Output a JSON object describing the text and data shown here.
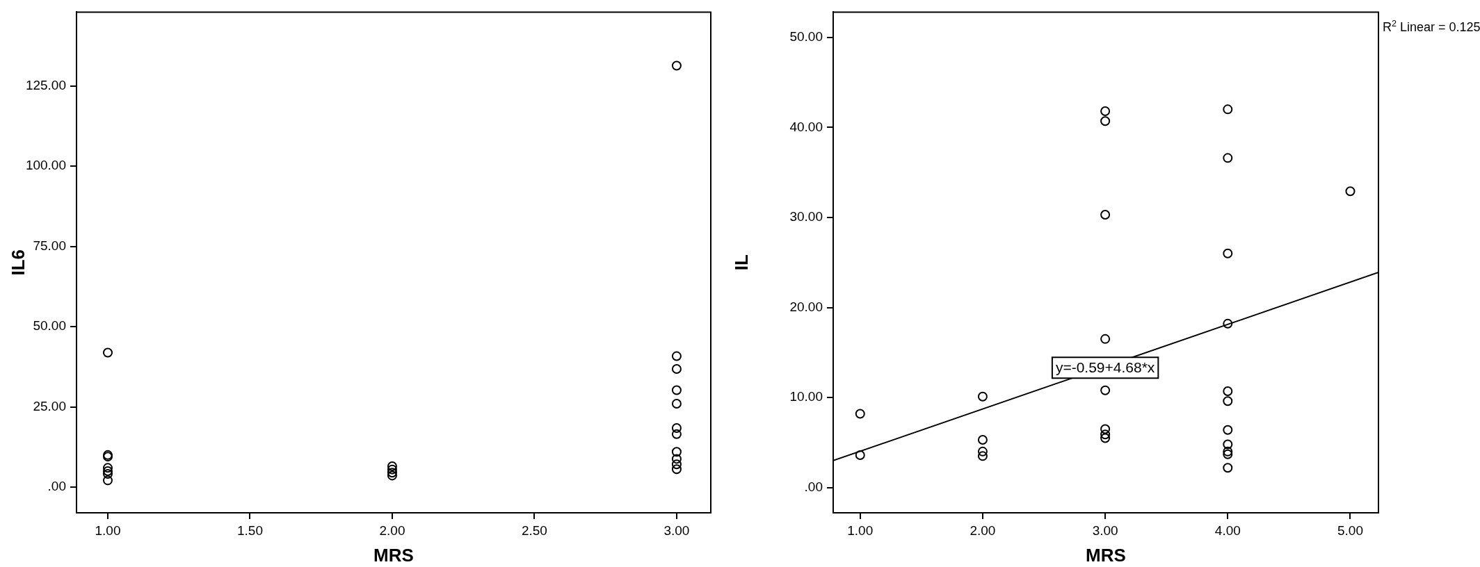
{
  "chart_data": [
    {
      "type": "scatter",
      "xlabel": "MRS",
      "ylabel": "IL6",
      "xlim": [
        0.89,
        3.12
      ],
      "ylim": [
        -8,
        148
      ],
      "xticks": [
        {
          "value": 1,
          "label": "1.00"
        },
        {
          "value": 1.5,
          "label": "1.50"
        },
        {
          "value": 2,
          "label": "2.00"
        },
        {
          "value": 2.5,
          "label": "2.50"
        },
        {
          "value": 3,
          "label": "3.00"
        }
      ],
      "yticks": [
        {
          "value": 0,
          "label": ".00"
        },
        {
          "value": 25,
          "label": "25.00"
        },
        {
          "value": 50,
          "label": "50.00"
        },
        {
          "value": 75,
          "label": "75.00"
        },
        {
          "value": 100,
          "label": "100.00"
        },
        {
          "value": 125,
          "label": "125.00"
        }
      ],
      "marker": "circle",
      "legend": false,
      "series": [
        {
          "color": "#000000",
          "x": [
            1,
            1,
            1,
            1,
            1,
            1,
            1,
            2,
            2,
            2,
            2,
            3,
            3,
            3,
            3,
            3,
            3,
            3,
            3,
            3,
            3,
            3
          ],
          "values": [
            41.9,
            10.0,
            9.5,
            6.0,
            5.0,
            4.1,
            2.1,
            6.5,
            5.5,
            4.5,
            3.6,
            131.3,
            40.8,
            36.8,
            30.2,
            26.0,
            18.4,
            16.5,
            11.0,
            8.8,
            7.1,
            5.6
          ]
        }
      ]
    },
    {
      "type": "scatter",
      "xlabel": "MRS",
      "ylabel": "IL",
      "xlim": [
        0.78,
        5.23
      ],
      "ylim": [
        -2.8,
        52.8
      ],
      "xticks": [
        {
          "value": 1,
          "label": "1.00"
        },
        {
          "value": 2,
          "label": "2.00"
        },
        {
          "value": 3,
          "label": "3.00"
        },
        {
          "value": 4,
          "label": "4.00"
        },
        {
          "value": 5,
          "label": "5.00"
        }
      ],
      "yticks": [
        {
          "value": 0,
          "label": ".00"
        },
        {
          "value": 10,
          "label": "10.00"
        },
        {
          "value": 20,
          "label": "20.00"
        },
        {
          "value": 30,
          "label": "30.00"
        },
        {
          "value": 40,
          "label": "40.00"
        },
        {
          "value": 50,
          "label": "50.00"
        }
      ],
      "marker": "circle",
      "legend": false,
      "annotations": [
        "R$^{2}$ Linear = 0.125",
        {
          "text": "y=-0.59+4.68*x",
          "x": 3.0,
          "y": 13.3
        }
      ],
      "series": [
        {
          "color": "#000000",
          "x": [
            1,
            1,
            2,
            2,
            2,
            2,
            3,
            3,
            3,
            3,
            3,
            3,
            3,
            3,
            4,
            4,
            4,
            4,
            4,
            4,
            4,
            4,
            4,
            4,
            4,
            5
          ],
          "values": [
            8.2,
            3.6,
            10.1,
            5.3,
            4.0,
            3.5,
            41.8,
            40.7,
            30.3,
            16.5,
            10.8,
            6.5,
            5.9,
            5.5,
            42.0,
            36.6,
            26.0,
            18.2,
            10.7,
            9.6,
            6.4,
            4.8,
            4.0,
            3.7,
            2.2,
            32.9
          ]
        },
        {
          "type": "line",
          "marker": "none",
          "color": "#000000",
          "x": [
            0.78,
            5.23
          ],
          "values": [
            3.0,
            23.9
          ]
        }
      ]
    }
  ]
}
